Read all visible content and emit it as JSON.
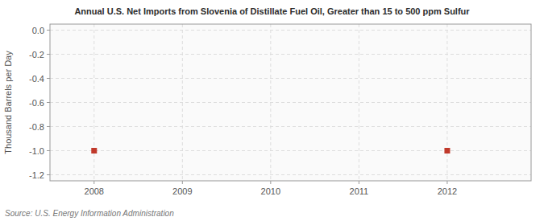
{
  "chart_data": {
    "type": "scatter",
    "title": "Annual U.S. Net Imports from Slovenia of Distillate Fuel Oil, Greater than 15 to 500 ppm Sulfur",
    "ylabel": "Thousand Barrels per Day",
    "annotations": [
      "Source: U.S. Energy Information Administration"
    ],
    "x": [
      2008,
      2012
    ],
    "values": [
      -1.0,
      -1.0
    ],
    "color": "#c0392b",
    "marker": "square",
    "xlim": [
      2007.5,
      2012.95
    ],
    "xticks": [
      2008,
      2009,
      2010,
      2011,
      2012
    ],
    "ylim": [
      -1.25,
      0.05
    ],
    "yticks": [
      {
        "value": 0.0,
        "label": "0.0"
      },
      -0.2,
      -0.4,
      -0.6,
      -0.8,
      {
        "value": -1.0,
        "label": "-1.0"
      },
      -1.2
    ],
    "grid": true
  }
}
